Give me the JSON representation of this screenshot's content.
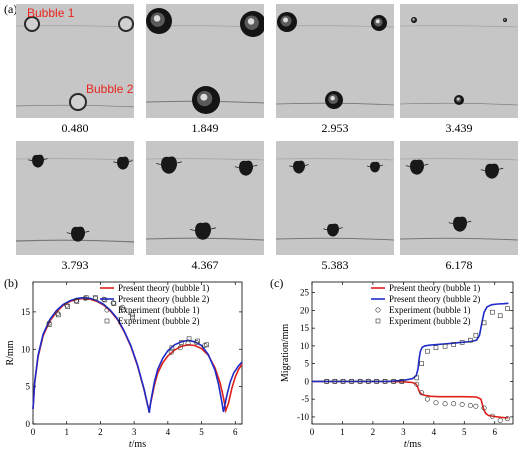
{
  "panel_labels": {
    "a": "(a)",
    "b": "(b)",
    "c": "(c)"
  },
  "bubble_labels": {
    "bubble1": "Bubble 1",
    "bubble2": "Bubble 2"
  },
  "frame_times": [
    "0.480",
    "1.849",
    "2.953",
    "3.439",
    "3.793",
    "4.367",
    "5.383",
    "6.178"
  ],
  "colors": {
    "frame_bg": "#c6c6c6",
    "red": "#e0201b",
    "blue": "#1f2bc8",
    "label_red": "#e8251e"
  },
  "chart_data": [
    {
      "type": "line",
      "id": "b",
      "xlabel_var": "t",
      "xlabel_unit": "/ms",
      "ylabel": "R/mm",
      "xlim": [
        0,
        6.2
      ],
      "ylim": [
        0,
        19
      ],
      "xticks": [
        0,
        1,
        2,
        3,
        4,
        5,
        6
      ],
      "yticks": [
        0,
        5,
        10,
        15
      ],
      "legend_position": "top-right",
      "series": [
        {
          "name": "Present theory (bubble 1)",
          "style": "line",
          "color": "#e0201b",
          "x": [
            0,
            0.05,
            0.15,
            0.3,
            0.5,
            0.7,
            0.9,
            1.1,
            1.3,
            1.5,
            1.7,
            1.9,
            2.1,
            2.3,
            2.5,
            2.7,
            2.9,
            3.1,
            3.3,
            3.4,
            3.45,
            3.5,
            3.6,
            3.7,
            3.85,
            4.0,
            4.2,
            4.4,
            4.6,
            4.8,
            5.0,
            5.2,
            5.4,
            5.55,
            5.65,
            5.72,
            5.8,
            5.9,
            6.0,
            6.1,
            6.2
          ],
          "y": [
            2.0,
            5.5,
            9.0,
            11.8,
            13.8,
            15.0,
            15.9,
            16.4,
            16.7,
            16.8,
            16.7,
            16.4,
            15.9,
            15.1,
            14.0,
            12.4,
            10.4,
            7.8,
            4.5,
            2.5,
            2.0,
            3.0,
            5.2,
            6.8,
            8.2,
            9.1,
            9.9,
            10.4,
            10.6,
            10.5,
            10.1,
            9.2,
            7.5,
            5.5,
            3.5,
            1.8,
            2.8,
            4.8,
            6.3,
            7.3,
            8.0
          ]
        },
        {
          "name": "Present theory (bubble 2)",
          "style": "line",
          "color": "#1f2bc8",
          "x": [
            0,
            0.05,
            0.15,
            0.3,
            0.5,
            0.7,
            0.9,
            1.1,
            1.3,
            1.5,
            1.7,
            1.9,
            2.1,
            2.3,
            2.5,
            2.7,
            2.9,
            3.1,
            3.3,
            3.4,
            3.45,
            3.5,
            3.6,
            3.7,
            3.85,
            4.0,
            4.2,
            4.4,
            4.6,
            4.8,
            5.0,
            5.2,
            5.4,
            5.5,
            5.6,
            5.65,
            5.75,
            5.85,
            5.95,
            6.1,
            6.2
          ],
          "y": [
            2.0,
            5.6,
            9.2,
            12.0,
            14.0,
            15.2,
            16.0,
            16.5,
            16.8,
            16.9,
            16.8,
            16.5,
            16.0,
            15.2,
            14.1,
            12.5,
            10.5,
            7.9,
            4.6,
            2.6,
            1.5,
            3.2,
            5.6,
            7.3,
            8.8,
            9.8,
            10.6,
            11.0,
            11.2,
            11.0,
            10.5,
            9.3,
            7.2,
            5.4,
            3.0,
            1.6,
            3.8,
            5.6,
            6.8,
            7.8,
            8.3
          ]
        },
        {
          "name": "Experiment (bubble 1)",
          "style": "marker",
          "marker": "circle",
          "x": [
            0.48,
            0.73,
            1.0,
            1.28,
            1.55,
            1.85,
            2.1,
            2.38,
            2.65,
            2.95,
            4.1,
            4.37,
            4.6,
            4.85,
            5.1
          ],
          "y": [
            13.5,
            14.8,
            15.9,
            16.5,
            16.8,
            16.8,
            16.7,
            16.2,
            15.6,
            14.6,
            9.6,
            10.2,
            10.8,
            10.9,
            10.5
          ]
        },
        {
          "name": "Experiment (bubble 2)",
          "style": "marker",
          "marker": "square",
          "x": [
            0.48,
            0.75,
            1.03,
            1.3,
            1.58,
            1.85,
            2.13,
            2.4,
            2.68,
            2.95,
            4.12,
            4.4,
            4.63,
            4.88,
            5.15
          ],
          "y": [
            13.3,
            14.6,
            15.7,
            16.4,
            16.9,
            16.9,
            16.6,
            16.1,
            15.3,
            14.3,
            10.2,
            10.9,
            11.4,
            11.1,
            10.6
          ]
        }
      ]
    },
    {
      "type": "line",
      "id": "c",
      "xlabel_var": "t",
      "xlabel_unit": "/ms",
      "ylabel": "Migration/mm",
      "xlim": [
        0,
        6.6
      ],
      "ylim": [
        -12,
        28
      ],
      "xticks": [
        0,
        1,
        2,
        3,
        4,
        5,
        6
      ],
      "yticks": [
        -10,
        -5,
        0,
        5,
        10,
        15,
        20,
        25
      ],
      "legend_position": "top-right",
      "series": [
        {
          "name": "Present theory (bubble 1)",
          "style": "line",
          "color": "#e0201b",
          "x": [
            0,
            0.5,
            1.0,
            1.5,
            2.0,
            2.5,
            3.0,
            3.3,
            3.42,
            3.48,
            3.52,
            3.58,
            3.65,
            3.75,
            3.9,
            4.2,
            4.6,
            5.0,
            5.4,
            5.55,
            5.62,
            5.7,
            5.8,
            6.0,
            6.2,
            6.45
          ],
          "y": [
            0,
            0,
            0,
            0,
            0,
            0,
            -0.1,
            -0.3,
            -0.8,
            -1.8,
            -2.8,
            -3.5,
            -3.8,
            -4.0,
            -4.2,
            -4.3,
            -4.3,
            -4.3,
            -4.4,
            -5.0,
            -7.5,
            -9.0,
            -9.6,
            -9.9,
            -10.1,
            -10.3
          ]
        },
        {
          "name": "Present theory (bubble 2)",
          "style": "line",
          "color": "#1f2bc8",
          "x": [
            0,
            0.5,
            1.0,
            1.5,
            2.0,
            2.5,
            3.0,
            3.3,
            3.42,
            3.48,
            3.52,
            3.56,
            3.62,
            3.7,
            3.85,
            4.1,
            4.4,
            4.8,
            5.2,
            5.4,
            5.5,
            5.58,
            5.65,
            5.75,
            5.9,
            6.1,
            6.3,
            6.45
          ],
          "y": [
            0,
            0,
            0,
            0,
            0,
            0,
            0.3,
            0.8,
            1.6,
            3.5,
            6.5,
            8.5,
            9.6,
            10.0,
            10.2,
            10.4,
            10.6,
            10.9,
            11.2,
            11.6,
            13.0,
            16.5,
            19.5,
            21.0,
            21.6,
            21.8,
            21.9,
            22.0
          ]
        },
        {
          "name": "Experiment (bubble 1)",
          "style": "marker",
          "marker": "circle",
          "x": [
            0.48,
            0.75,
            1.02,
            1.3,
            1.58,
            1.85,
            2.12,
            2.4,
            2.68,
            2.95,
            3.44,
            3.6,
            3.79,
            4.07,
            4.37,
            4.65,
            4.93,
            5.2,
            5.38,
            5.65,
            5.92,
            6.18,
            6.42
          ],
          "y": [
            0,
            0,
            0,
            0,
            0,
            0,
            0,
            0,
            0,
            0,
            -0.8,
            -3.2,
            -5.0,
            -6.0,
            -6.3,
            -6.3,
            -6.5,
            -6.8,
            -7.0,
            -7.5,
            -9.8,
            -11.0,
            -10.5
          ]
        },
        {
          "name": "Experiment (bubble 2)",
          "style": "marker",
          "marker": "square",
          "x": [
            0.48,
            0.75,
            1.02,
            1.3,
            1.58,
            1.85,
            2.12,
            2.4,
            2.68,
            2.95,
            3.44,
            3.6,
            3.79,
            4.07,
            4.37,
            4.65,
            4.93,
            5.2,
            5.38,
            5.65,
            5.92,
            6.18,
            6.42
          ],
          "y": [
            0,
            0,
            0,
            0,
            0,
            0,
            0,
            0,
            0,
            0,
            1.0,
            5.0,
            8.5,
            9.5,
            9.9,
            10.4,
            11.0,
            11.6,
            13.0,
            16.5,
            19.5,
            18.5,
            20.5
          ]
        }
      ]
    }
  ]
}
